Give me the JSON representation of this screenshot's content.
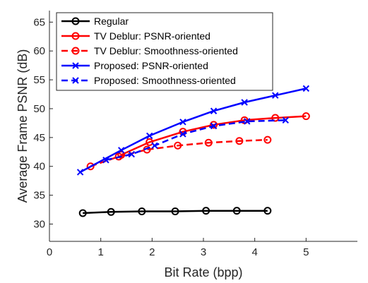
{
  "chart_data": {
    "type": "line",
    "title": "",
    "xlabel": "Bit Rate (bpp)",
    "ylabel": "Average Frame PSNR (dB)",
    "xlim": [
      0,
      6
    ],
    "ylim": [
      27,
      67
    ],
    "xticks": [
      0,
      1,
      2,
      3,
      4,
      5
    ],
    "yticks": [
      30,
      35,
      40,
      45,
      50,
      55,
      60,
      65
    ],
    "grid": false,
    "legend_position": "top-left",
    "series": [
      {
        "name": "Regular",
        "color": "#000000",
        "line_style": "solid",
        "marker": "circle",
        "x": [
          0.65,
          1.2,
          1.8,
          2.45,
          3.05,
          3.65,
          4.25
        ],
        "y": [
          31.9,
          32.1,
          32.2,
          32.2,
          32.3,
          32.3,
          32.3
        ]
      },
      {
        "name": "TV Deblur: PSNR-oriented",
        "color": "#ff0000",
        "line_style": "solid",
        "marker": "circle",
        "x": [
          1.4,
          1.95,
          2.6,
          3.2,
          3.8,
          4.4,
          5.0
        ],
        "y": [
          42.0,
          44.2,
          46.0,
          47.2,
          48.0,
          48.4,
          48.7
        ]
      },
      {
        "name": "TV Deblur: Smoothness-oriented",
        "color": "#ff0000",
        "line_style": "dashed",
        "marker": "circle",
        "x": [
          0.8,
          1.35,
          1.9,
          2.5,
          3.1,
          3.7,
          4.25
        ],
        "y": [
          40.0,
          41.7,
          42.9,
          43.6,
          44.1,
          44.4,
          44.6
        ]
      },
      {
        "name": "Proposed: PSNR-oriented",
        "color": "#0000ff",
        "line_style": "solid",
        "marker": "x",
        "x": [
          0.6,
          1.4,
          1.95,
          2.6,
          3.2,
          3.8,
          4.4,
          5.0
        ],
        "y": [
          39.0,
          42.8,
          45.3,
          47.7,
          49.6,
          51.1,
          52.3,
          53.5
        ]
      },
      {
        "name": "Proposed: Smoothness-oriented",
        "color": "#0000ff",
        "line_style": "dashed",
        "marker": "x",
        "x": [
          1.1,
          1.6,
          2.05,
          2.6,
          3.2,
          3.85,
          4.6
        ],
        "y": [
          41.1,
          42.1,
          43.6,
          45.6,
          47.0,
          47.8,
          48.0
        ]
      }
    ]
  }
}
